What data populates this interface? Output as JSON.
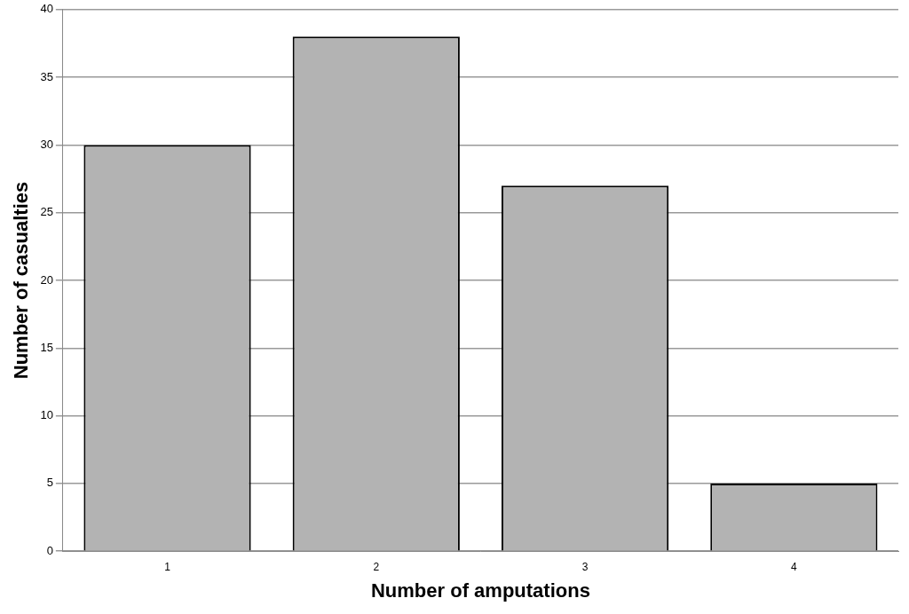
{
  "chart_data": {
    "type": "bar",
    "x_label": "Number of amputations",
    "y_label": "Number of casualties",
    "categories": [
      "1",
      "2",
      "3",
      "4"
    ],
    "values": [
      30,
      38,
      27,
      5
    ],
    "color": "#b3b3b3",
    "ylim": [
      0,
      40
    ],
    "yticks": [
      0,
      5,
      10,
      15,
      20,
      25,
      30,
      35,
      40
    ],
    "grid": true
  }
}
